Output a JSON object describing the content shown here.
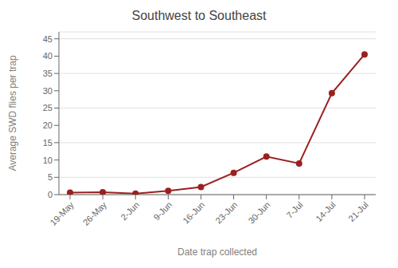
{
  "chart_data": {
    "type": "line",
    "title": "Southwest to Southeast",
    "xlabel": "Date trap collected",
    "ylabel": "Average SWD flies per trap",
    "categories": [
      "19-May",
      "26-May",
      "2-Jun",
      "9-Jun",
      "16-Jun",
      "23-Jun",
      "30-Jun",
      "7-Jul",
      "14-Jul",
      "21-Jul"
    ],
    "values": [
      0.6,
      0.7,
      0.3,
      1.1,
      2.2,
      6.3,
      11.0,
      9.0,
      29.3,
      40.5
    ],
    "color": "#9B2020",
    "marker": "circle",
    "ylim": [
      0,
      47
    ],
    "yticks": [
      0,
      5,
      10,
      15,
      20,
      25,
      30,
      35,
      40,
      45
    ],
    "grid": true
  }
}
